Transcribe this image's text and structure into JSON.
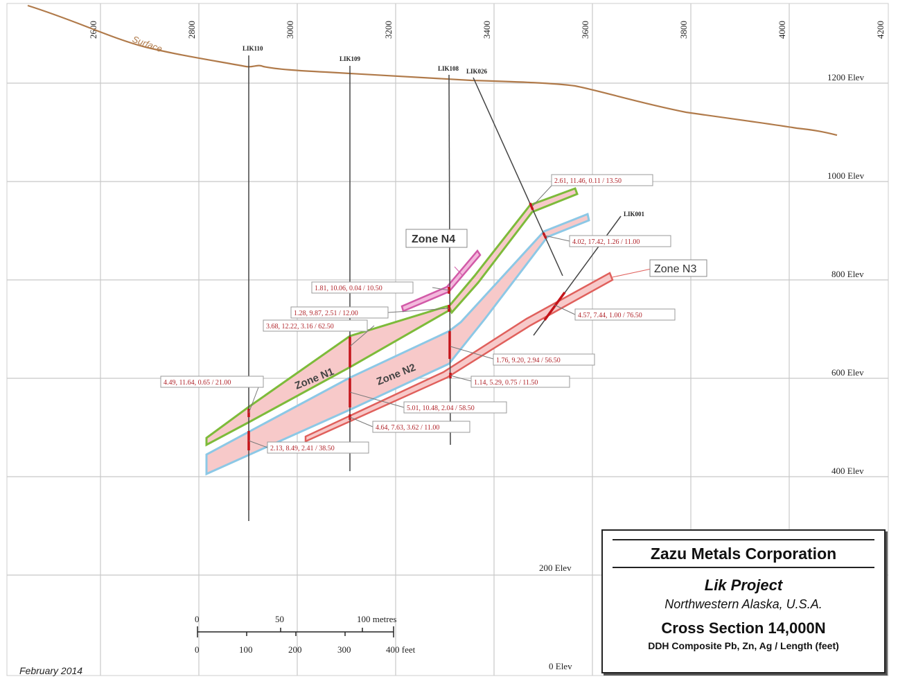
{
  "grid": {
    "easting_labels": [
      "2600",
      "2800",
      "3000",
      "3200",
      "3400",
      "3600",
      "3800",
      "4000",
      "4200"
    ],
    "elevation_labels": [
      "1200 Elev",
      "1000 Elev",
      "800 Elev",
      "600 Elev",
      "400 Elev",
      "200 Elev",
      "0 Elev"
    ]
  },
  "surface_label": "Surface",
  "drillholes": [
    {
      "name": "LIK110"
    },
    {
      "name": "LIK109"
    },
    {
      "name": "LIK108"
    },
    {
      "name": "LIK026"
    },
    {
      "name": "LIK001"
    }
  ],
  "zones": [
    {
      "name": "Zone N1"
    },
    {
      "name": "Zone N2"
    },
    {
      "name": "Zone N3"
    },
    {
      "name": "Zone N4"
    }
  ],
  "intercepts": [
    "2.61, 11.46, 0.11 / 13.50",
    "4.02, 17.42, 1.26 / 11.00",
    "1.81, 10.06, 0.04 / 10.50",
    "1.28, 9.87, 2.51 / 12.00",
    "3.68, 12.22, 3.16 / 62.50",
    "4.57, 7.44, 1.00 / 76.50",
    "1.76, 9.20, 2.94 / 56.50",
    "1.14, 5.29, 0.75 / 11.50",
    "4.49, 11.64, 0.65 / 21.00",
    "5.01, 10.48, 2.04 / 58.50",
    "4.64, 7.63, 3.62 / 11.00",
    "2.13, 8.49, 2.41 / 38.50"
  ],
  "scale_bar": {
    "metres_labels": [
      "0",
      "50",
      "100 metres"
    ],
    "feet_labels": [
      "0",
      "100",
      "200",
      "300",
      "400 feet"
    ]
  },
  "title_block": {
    "company": "Zazu Metals Corporation",
    "project": "Lik Project",
    "location": "Northwestern Alaska, U.S.A.",
    "section": "Cross Section 14,000N",
    "subtitle": "DDH Composite Pb, Zn, Ag / Length (feet)"
  },
  "date": "February 2014",
  "colors": {
    "surface": "#b07a4a",
    "grid": "#c8c8c8",
    "zone_fill": "#f7c9c9",
    "zone_n1_outline": "#7dbb3a",
    "zone_n2_outline": "#8cc8e6",
    "zone_n3_outline": "#e0605c",
    "zone_n4_outline": "#d25aa8",
    "intercept_text": "#b0242a"
  }
}
